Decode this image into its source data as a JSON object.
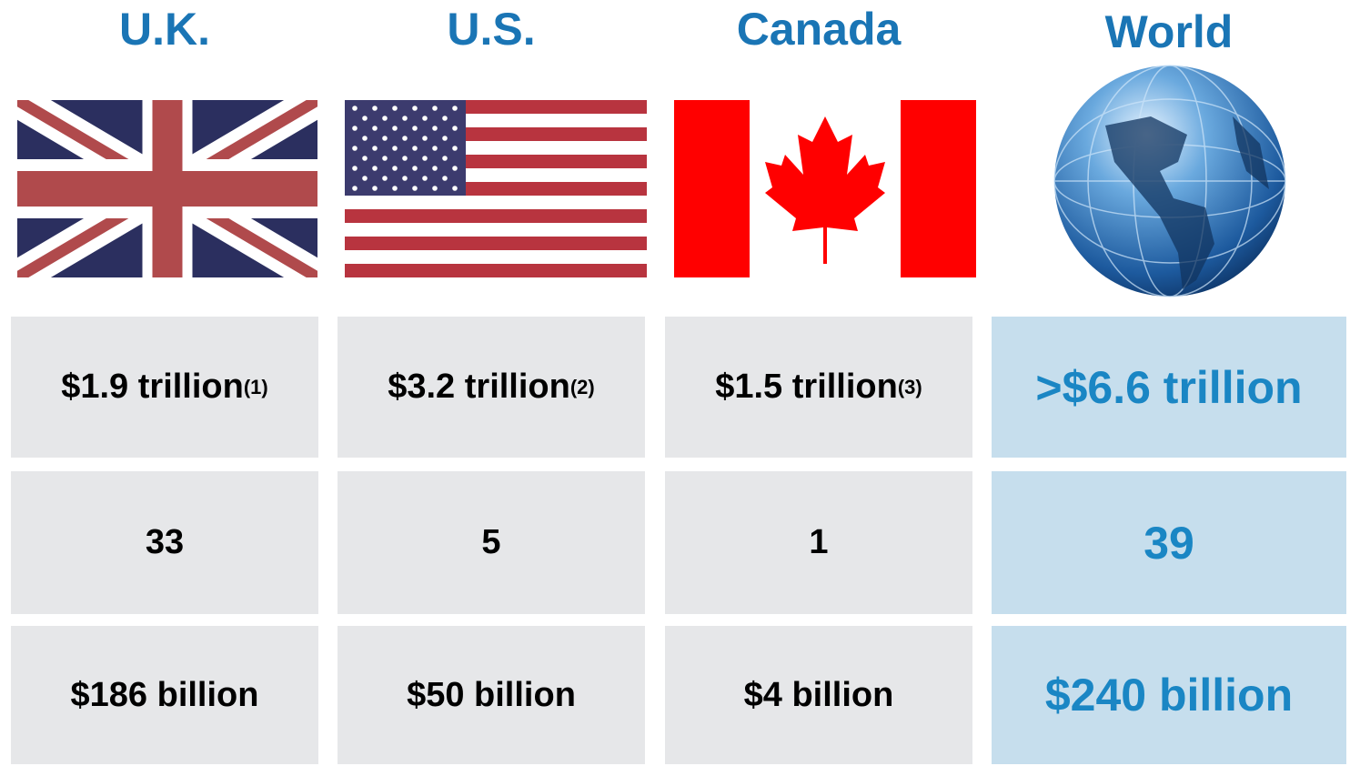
{
  "columns": [
    {
      "name": "U.K.",
      "cells": [
        {
          "text": "$1.9 trillion",
          "note": "(1)"
        },
        {
          "text": "33"
        },
        {
          "text": "$186 billion"
        }
      ]
    },
    {
      "name": "U.S.",
      "cells": [
        {
          "text": "$3.2 trillion",
          "note": "(2)"
        },
        {
          "text": "5"
        },
        {
          "text": "$50 billion"
        }
      ]
    },
    {
      "name": "Canada",
      "cells": [
        {
          "text": "$1.5 trillion",
          "note": "(3)"
        },
        {
          "text": "1"
        },
        {
          "text": "$4 billion"
        }
      ]
    },
    {
      "name": "World",
      "cells": [
        {
          "text": ">$6.6 trillion"
        },
        {
          "text": "39"
        },
        {
          "text": "$240 billion"
        }
      ]
    }
  ]
}
